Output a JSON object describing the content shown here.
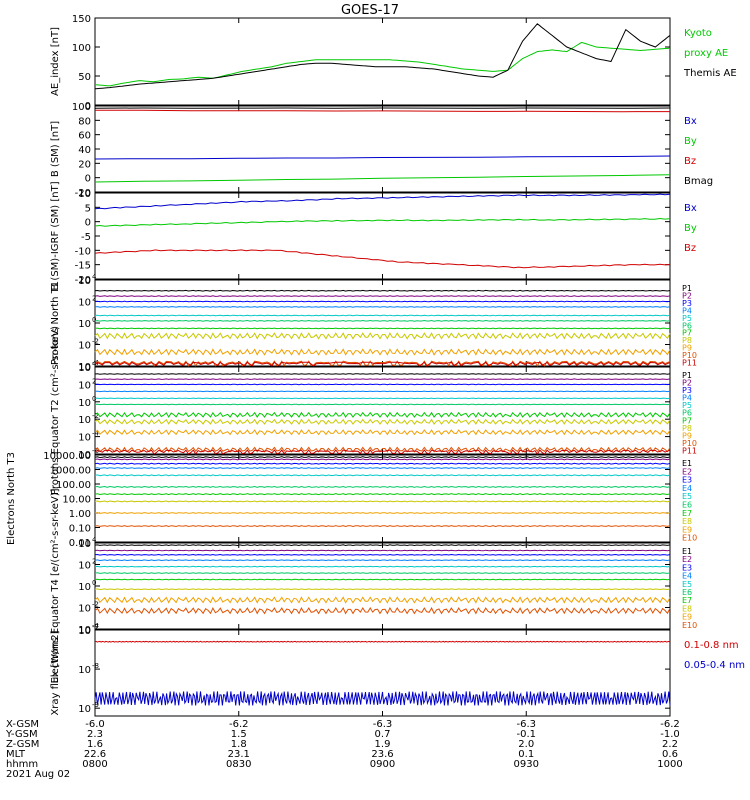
{
  "title": "GOES-17",
  "footer": {
    "date": "2021 Aug 02",
    "rows": [
      {
        "label": "X-GSM",
        "values": [
          "-6.0",
          "-6.2",
          "-6.3",
          "-6.3",
          "-6.2"
        ]
      },
      {
        "label": "Y-GSM",
        "values": [
          "2.3",
          "1.5",
          "0.7",
          "-0.1",
          "-1.0"
        ]
      },
      {
        "label": "Z-GSM",
        "values": [
          "1.6",
          "1.8",
          "1.9",
          "2.0",
          "2.2"
        ]
      },
      {
        "label": "MLT",
        "values": [
          "22.6",
          "23.1",
          "23.6",
          "0.1",
          "0.6"
        ]
      },
      {
        "label": "hhmm",
        "values": [
          "0800",
          "0830",
          "0900",
          "0930",
          "1000"
        ]
      }
    ]
  },
  "colors": {
    "black": "#000000",
    "red": "#d00000",
    "green": "#00c800",
    "blue": "#0000cc",
    "ramp": [
      "#000000",
      "#800080",
      "#0000ff",
      "#0080ff",
      "#00c8c8",
      "#00c864",
      "#00c800",
      "#c8c800",
      "#f0a000",
      "#e05000",
      "#cc0000"
    ]
  },
  "chart_data": [
    {
      "type": "line",
      "ylabel": "AE_index [nT]",
      "ylim": [
        0,
        150
      ],
      "yticks": [
        "0",
        "50",
        "100",
        "150"
      ],
      "series": [
        {
          "name": "Kyoto",
          "color": "#00c800",
          "y": [
            35,
            33,
            38,
            42,
            40,
            44,
            45,
            48,
            46,
            52,
            58,
            62,
            66,
            72,
            75,
            78,
            78,
            78,
            78,
            78,
            78,
            76,
            74,
            70,
            66,
            62,
            60,
            58,
            60,
            80,
            92,
            95,
            92,
            108,
            100,
            98,
            96,
            94,
            96,
            98
          ]
        },
        {
          "name": "proxy AE",
          "color": "#00c800"
        },
        {
          "name": "Themis AE",
          "color": "#000000",
          "y": [
            28,
            30,
            33,
            36,
            38,
            40,
            42,
            44,
            46,
            50,
            54,
            58,
            62,
            66,
            70,
            72,
            72,
            70,
            68,
            66,
            66,
            66,
            64,
            62,
            58,
            54,
            50,
            48,
            60,
            110,
            140,
            120,
            100,
            90,
            80,
            75,
            130,
            110,
            100,
            120
          ]
        }
      ]
    },
    {
      "type": "line",
      "ylabel": "B (SM) [nT]",
      "ylim": [
        -20,
        100
      ],
      "yticks": [
        "-20",
        "0",
        "20",
        "40",
        "60",
        "80",
        "100"
      ],
      "series": [
        {
          "name": "Bx",
          "color": "#0000cc",
          "y0": 26,
          "y1": 30
        },
        {
          "name": "By",
          "color": "#00c800",
          "y0": -6,
          "y1": 4
        },
        {
          "name": "Bz",
          "color": "#d00000",
          "y0": 94,
          "y1": 92
        },
        {
          "name": "Bmag",
          "color": "#000000",
          "y0": 97,
          "y1": 97
        }
      ]
    },
    {
      "type": "line",
      "ylabel": "B (SM)-IGRF (SM) [nT]",
      "ylim": [
        -20,
        10
      ],
      "yticks": [
        "-20",
        "-15",
        "-10",
        "-5",
        "0",
        "5",
        "10"
      ],
      "series": [
        {
          "name": "Bx",
          "color": "#0000cc",
          "y": [
            4.5,
            5,
            5.5,
            6,
            6.5,
            7,
            7.2,
            7.5,
            8,
            8.2,
            8.4,
            8.6,
            8.8,
            9,
            9.2,
            9.2,
            9.2,
            9.3,
            9.4,
            9.5
          ]
        },
        {
          "name": "By",
          "color": "#00c800",
          "y": [
            -1.5,
            -1.3,
            -1,
            -0.8,
            -0.5,
            -0.3,
            0,
            0.2,
            0.3,
            0.4,
            0.5,
            0.4,
            0.5,
            0.6,
            0.7,
            0.6,
            0.7,
            0.8,
            0.9,
            1
          ]
        },
        {
          "name": "Bz",
          "color": "#d00000",
          "y": [
            -11,
            -10.5,
            -10,
            -10,
            -10,
            -10,
            -10,
            -11,
            -12,
            -13,
            -14,
            -14.5,
            -15,
            -15.5,
            -16,
            -15.8,
            -15.5,
            -15.2,
            -15,
            -15
          ]
        }
      ]
    },
    {
      "type": "line",
      "ylabel": "Protons North T1",
      "yscale": "log",
      "ylim": [
        -4,
        4
      ],
      "yticks": [
        "4",
        "2",
        "0",
        "-2",
        "-4"
      ],
      "labels": [
        "P1",
        "P2",
        "P3",
        "P4",
        "P5",
        "P6",
        "P7",
        "P8",
        "P9",
        "P10",
        "P11"
      ],
      "levels": [
        3.0,
        2.5,
        2.0,
        1.5,
        0.7,
        0.2,
        -0.5,
        -1.2,
        -2.7,
        -3.8,
        -3.9
      ]
    },
    {
      "type": "line",
      "ylabel": "Protons Equator T2 (cm²-s-sr-keV)",
      "yscale": "log",
      "ylim": [
        -6,
        4
      ],
      "yticks": [
        "4",
        "2",
        "0",
        "-2",
        "-4",
        "-6"
      ],
      "labels": [
        "P1",
        "P2",
        "P3",
        "P4",
        "P5",
        "P6",
        "P7",
        "P8",
        "P9",
        "P10",
        "P11"
      ],
      "levels": [
        3.2,
        2.6,
        2.0,
        1.2,
        0.4,
        -0.3,
        -1.5,
        -2.3,
        -3.5,
        -5.5,
        -5.8
      ]
    },
    {
      "type": "line",
      "ylabel": "Electrons North T3",
      "yscale": "log",
      "ylim": [
        -2,
        4
      ],
      "yticks": [
        "10000.00",
        "1000.00",
        "100.00",
        "10.00",
        "1.00",
        "0.10",
        "0.01"
      ],
      "labels": [
        "E1",
        "E2",
        "E3",
        "E4",
        "E5",
        "E6",
        "E7",
        "E8",
        "E9",
        "E10"
      ],
      "levels": [
        3.85,
        3.7,
        3.4,
        3.1,
        2.6,
        1.8,
        1.3,
        0.8,
        0.0,
        -0.9
      ]
    },
    {
      "type": "line",
      "ylabel": "Electrons Equator T4 [e/(cm²-s-sr-keV)]",
      "yscale": "log",
      "ylim": [
        -4,
        4
      ],
      "yticks": [
        "4",
        "2",
        "0",
        "-2",
        "-4"
      ],
      "labels": [
        "E1",
        "E2",
        "E3",
        "E4",
        "E5",
        "E6",
        "E7",
        "E8",
        "E9",
        "E10"
      ],
      "levels": [
        3.8,
        3.3,
        2.9,
        2.4,
        1.8,
        1.2,
        0.6,
        -0.3,
        -1.3,
        -2.3
      ]
    },
    {
      "type": "line",
      "ylabel": "Xray flux [W/m2]",
      "yscale": "log",
      "ylim": [
        -9.2,
        -7
      ],
      "yticks": [
        "-7",
        "-8",
        "-9"
      ],
      "series": [
        {
          "name": "0.1-0.8 nm",
          "color": "#d00000",
          "level": -7.3
        },
        {
          "name": "0.05-0.4 nm",
          "color": "#0000cc",
          "level": -8.75
        }
      ]
    }
  ]
}
